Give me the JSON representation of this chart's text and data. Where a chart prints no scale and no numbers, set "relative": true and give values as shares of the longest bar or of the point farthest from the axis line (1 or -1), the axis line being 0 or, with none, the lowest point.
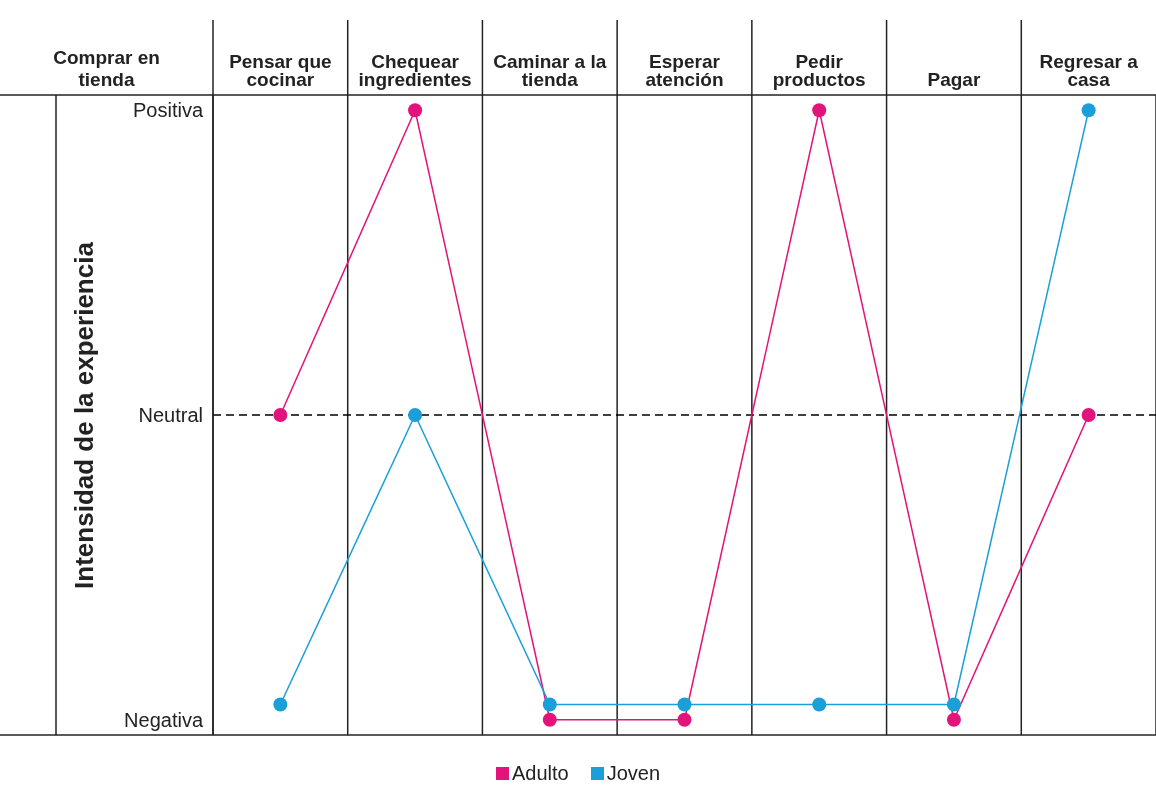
{
  "chart_data": {
    "type": "line",
    "title": "Comprar en tienda",
    "ylabel": "Intensidad de la experiencia",
    "categories": [
      "Pensar que cocinar",
      "Chequear ingredientes",
      "Caminar a la tienda",
      "Esperar atención",
      "Pedir productos",
      "Pagar",
      "Regresar a casa"
    ],
    "series": [
      {
        "name": "Adulto",
        "color": "#e2137a",
        "values": [
          0,
          1,
          -1,
          -1,
          1,
          -1,
          0
        ]
      },
      {
        "name": "Joven",
        "color": "#1a9fd9",
        "values": [
          -0.95,
          0,
          -0.95,
          -0.95,
          -0.95,
          -0.95,
          1
        ]
      }
    ],
    "relative": true,
    "annotations": [
      "Positiva",
      "Negativa"
    ],
    "ref_lines": [
      {
        "axis": "y",
        "value": 0,
        "label": "Neutral",
        "color": "#000000",
        "line_style": "dashed"
      }
    ],
    "grid": "x",
    "legend": "bottom",
    "marker": "circle",
    "line_style": "solid"
  }
}
